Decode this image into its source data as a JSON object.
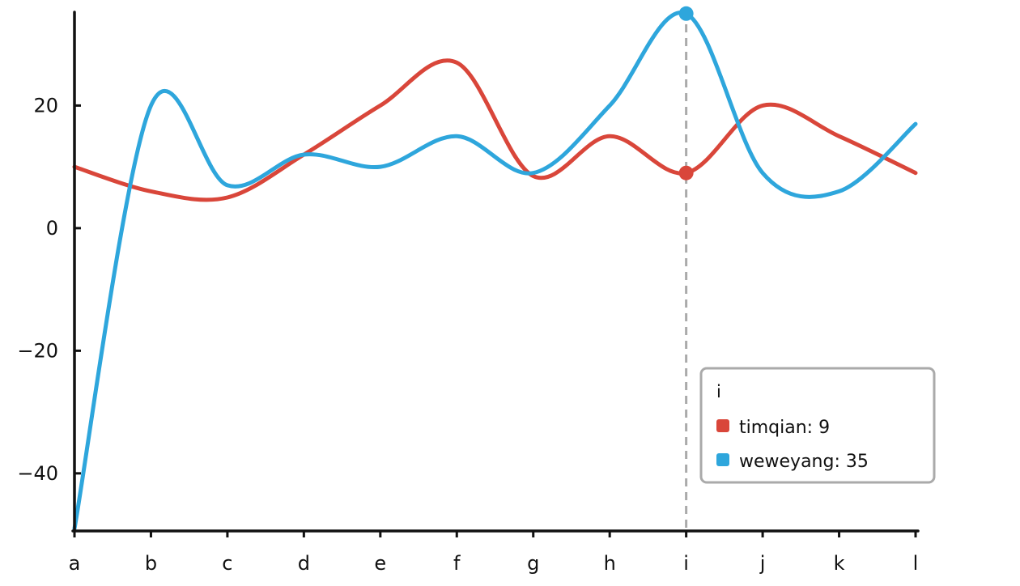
{
  "chart_data": {
    "type": "line",
    "categories": [
      "a",
      "b",
      "c",
      "d",
      "e",
      "f",
      "g",
      "h",
      "i",
      "j",
      "k",
      "l"
    ],
    "series": [
      {
        "name": "timqian",
        "values": [
          10,
          6,
          5,
          12,
          20,
          27,
          8.5,
          15,
          9,
          20,
          15,
          9
        ],
        "color": "#d9463a"
      },
      {
        "name": "weweyang",
        "values": [
          -49,
          20,
          7,
          12,
          10,
          15,
          9,
          20,
          35,
          9,
          6,
          17
        ],
        "color": "#2ea6dc"
      }
    ],
    "y_ticks": [
      20,
      0,
      -20,
      -40
    ],
    "ylim": [
      -49,
      35.5
    ],
    "grid": false,
    "legend": "tooltip bottom-right",
    "hover": {
      "category": "i",
      "title": "i",
      "entries": [
        {
          "label": "timqian: 9",
          "color": "#d9463a"
        },
        {
          "label": "weweyang: 35",
          "color": "#2ea6dc"
        }
      ]
    }
  }
}
